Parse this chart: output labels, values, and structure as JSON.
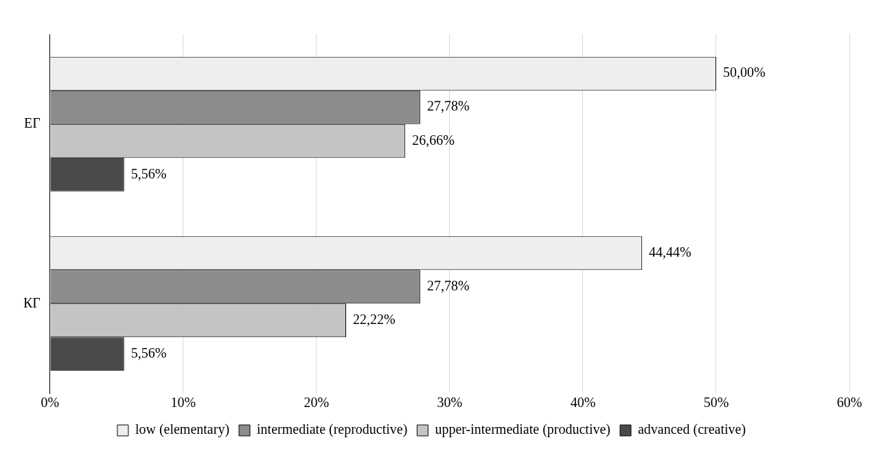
{
  "chart_data": {
    "type": "bar",
    "orientation": "horizontal",
    "categories": [
      "ЕГ",
      "КГ"
    ],
    "series": [
      {
        "name": "low (elementary)",
        "color": "#eeeeee",
        "values": [
          50.0,
          44.44
        ],
        "value_labels": [
          "50,00%",
          "44,44%"
        ]
      },
      {
        "name": "intermediate (reproductive)",
        "color": "#8c8c8c",
        "values": [
          27.78,
          27.78
        ],
        "value_labels": [
          "27,78%",
          "27,78%"
        ]
      },
      {
        "name": "upper-intermediate (productive)",
        "color": "#c4c4c4",
        "values": [
          26.66,
          22.22
        ],
        "value_labels": [
          "26,66%",
          "22,22%"
        ]
      },
      {
        "name": "advanced (creative)",
        "color": "#4a4a4a",
        "values": [
          5.56,
          5.56
        ],
        "value_labels": [
          "5,56%",
          "5,56%"
        ]
      }
    ],
    "xlim": [
      0,
      60
    ],
    "xticks": [
      {
        "value": 0,
        "label": "0%"
      },
      {
        "value": 10,
        "label": "10%"
      },
      {
        "value": 20,
        "label": "20%"
      },
      {
        "value": 30,
        "label": "30%"
      },
      {
        "value": 40,
        "label": "40%"
      },
      {
        "value": 50,
        "label": "50%"
      },
      {
        "value": 60,
        "label": "60%"
      }
    ],
    "grid": "x",
    "legend": "bottom"
  }
}
